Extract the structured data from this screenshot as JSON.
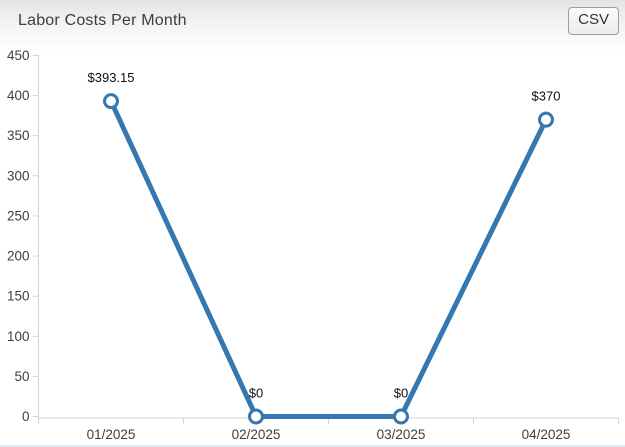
{
  "header": {
    "title": "Labor Costs Per Month",
    "csv_button_label": "CSV"
  },
  "chart_data": {
    "type": "line",
    "title": "Labor Costs Per Month",
    "categories": [
      "01/2025",
      "02/2025",
      "03/2025",
      "04/2025"
    ],
    "values": [
      393.15,
      0,
      0,
      370
    ],
    "point_labels": [
      "$393.15",
      "$0",
      "$0",
      "$370"
    ],
    "xlabel": "",
    "ylabel": "",
    "ylim": [
      0,
      450
    ],
    "ytick_step": 50,
    "ytick_labels": [
      "0",
      "50",
      "100",
      "150",
      "200",
      "250",
      "300",
      "350",
      "400",
      "450"
    ],
    "grid": false,
    "legend": "none",
    "line_color": "#3477b1",
    "marker_fill": "#ffffff",
    "marker_stroke": "#3477b1",
    "axis_color": "#d4d4d4",
    "tick_label_color": "#3f3f3f",
    "point_label_color": "#101010"
  }
}
